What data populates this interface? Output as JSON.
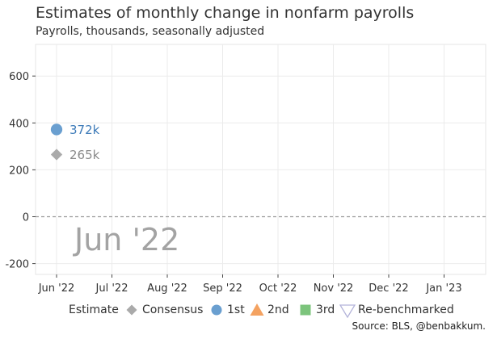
{
  "chart_data": {
    "type": "scatter",
    "title": "Estimates of monthly change in nonfarm payrolls",
    "subtitle": "Payrolls, thousands, seasonally adjusted",
    "x_categories": [
      "Jun '22",
      "Jul '22",
      "Aug '22",
      "Sep '22",
      "Oct '22",
      "Nov '22",
      "Dec '22",
      "Jan '23"
    ],
    "yticks": [
      -200,
      0,
      200,
      400,
      600
    ],
    "ylim": [
      -250,
      730
    ],
    "grid": true,
    "series": [
      {
        "name": "Consensus",
        "marker": "diamond",
        "color": "#aaaaaa",
        "points": [
          {
            "x": "Jun '22",
            "y": 265,
            "label": "265k"
          }
        ]
      },
      {
        "name": "1st",
        "marker": "circle",
        "color": "#6a9fd0",
        "points": [
          {
            "x": "Jun '22",
            "y": 372,
            "label": "372k"
          }
        ]
      },
      {
        "name": "2nd",
        "marker": "triangle-up",
        "color": "#f4a261",
        "points": []
      },
      {
        "name": "3rd",
        "marker": "square",
        "color": "#7cc47c",
        "points": []
      },
      {
        "name": "Re-benchmarked",
        "marker": "triangle-down-open",
        "color": "#b3b3d9",
        "points": []
      }
    ],
    "legend_title": "Estimate",
    "legend_position": "bottom",
    "watermark": "Jun '22",
    "caption": "Source: BLS, @benbakkum."
  }
}
